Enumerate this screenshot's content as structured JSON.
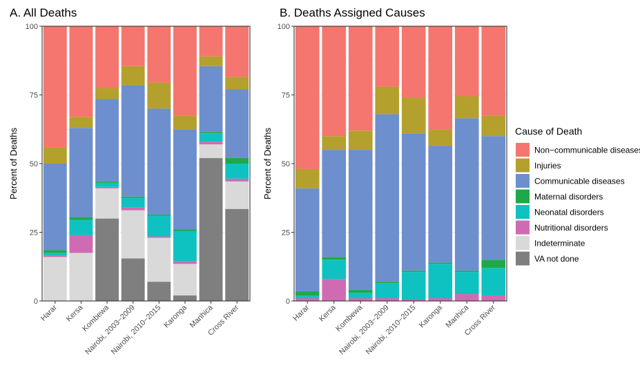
{
  "chart_data": [
    {
      "type": "bar",
      "stacked": true,
      "title": "A. All Deaths",
      "xlabel": "",
      "ylabel": "Percent of Deaths",
      "ylim": [
        0,
        100
      ],
      "yticks": [
        0,
        25,
        50,
        75,
        100
      ],
      "categories": [
        "Harar",
        "Kersa",
        "Kombewa",
        "Nairobi, 2003−2009",
        "Nairobi, 2010−2015",
        "Karonga",
        "Manhica",
        "Cross River"
      ],
      "series": [
        {
          "name": "VA not done",
          "color": "#7f7f7f",
          "values": [
            0,
            0,
            30,
            15.5,
            7,
            2,
            52,
            33.5
          ]
        },
        {
          "name": "Indeterminate",
          "color": "#d9d9d9",
          "values": [
            16,
            17.5,
            11,
            17.5,
            16,
            11.5,
            5,
            10
          ]
        },
        {
          "name": "Nutritional disorders",
          "color": "#cf6bb2",
          "values": [
            0.5,
            6.5,
            0.5,
            1,
            0.5,
            1,
            1,
            1
          ]
        },
        {
          "name": "Neonatal disorders",
          "color": "#0fc2c2",
          "values": [
            1,
            5.5,
            1.5,
            3.5,
            7.5,
            11,
            3,
            5.5
          ]
        },
        {
          "name": "Maternal disorders",
          "color": "#1ea84a",
          "values": [
            1,
            1,
            0.5,
            0.5,
            0.5,
            0.5,
            0.5,
            2
          ]
        },
        {
          "name": "Communicable diseases",
          "color": "#6d8fcd",
          "values": [
            31.5,
            32.5,
            30,
            40.5,
            38.5,
            36.5,
            24,
            25
          ]
        },
        {
          "name": "Injuries",
          "color": "#b4a02c",
          "values": [
            6,
            4,
            4,
            7,
            9.5,
            5,
            3.5,
            4.5
          ]
        },
        {
          "name": "Non−communicable diseases",
          "color": "#f4766e",
          "values": [
            44,
            33,
            22.5,
            14.5,
            20.5,
            32.5,
            11,
            18.5
          ]
        }
      ],
      "grid": true,
      "legend": "right"
    },
    {
      "type": "bar",
      "stacked": true,
      "title": "B. Deaths Assigned Causes",
      "xlabel": "",
      "ylabel": "Percent of Deaths",
      "ylim": [
        0,
        100
      ],
      "yticks": [
        0,
        25,
        50,
        75,
        100
      ],
      "categories": [
        "Harar",
        "Kersa",
        "Kombewa",
        "Nairobi, 2003−2009",
        "Nairobi, 2010−2015",
        "Karonga",
        "Manhica",
        "Cross River"
      ],
      "series": [
        {
          "name": "Nutritional disorders",
          "color": "#cf6bb2",
          "values": [
            1,
            8,
            1,
            1,
            0.5,
            1,
            2.5,
            2
          ]
        },
        {
          "name": "Neonatal disorders",
          "color": "#0fc2c2",
          "values": [
            1,
            7,
            2,
            5.5,
            10,
            12.5,
            8,
            10
          ]
        },
        {
          "name": "Maternal disorders",
          "color": "#1ea84a",
          "values": [
            1.5,
            1,
            1,
            0.5,
            0.5,
            0.5,
            0.5,
            3
          ]
        },
        {
          "name": "Communicable diseases",
          "color": "#6d8fcd",
          "values": [
            37.5,
            39,
            51,
            61,
            50,
            42.5,
            55.5,
            45
          ]
        },
        {
          "name": "Injuries",
          "color": "#b4a02c",
          "values": [
            7,
            5,
            7,
            10,
            13,
            6,
            8,
            7.5
          ]
        },
        {
          "name": "Non−communicable diseases",
          "color": "#f4766e",
          "values": [
            52,
            40,
            38,
            22,
            26,
            37.5,
            25.5,
            32.5
          ]
        }
      ],
      "grid": true,
      "legend": "right"
    }
  ],
  "legend": {
    "title": "Cause of Death",
    "items": [
      {
        "label": "Non−communicable diseases",
        "color": "#f4766e"
      },
      {
        "label": "Injuries",
        "color": "#b4a02c"
      },
      {
        "label": "Communicable diseases",
        "color": "#6d8fcd"
      },
      {
        "label": "Maternal disorders",
        "color": "#1ea84a"
      },
      {
        "label": "Neonatal disorders",
        "color": "#0fc2c2"
      },
      {
        "label": "Nutritional disorders",
        "color": "#cf6bb2"
      },
      {
        "label": "Indeterminate",
        "color": "#d9d9d9"
      },
      {
        "label": "VA not done",
        "color": "#7f7f7f"
      }
    ]
  },
  "panel_background": "#ffffff",
  "grid_color": "#ebebeb"
}
